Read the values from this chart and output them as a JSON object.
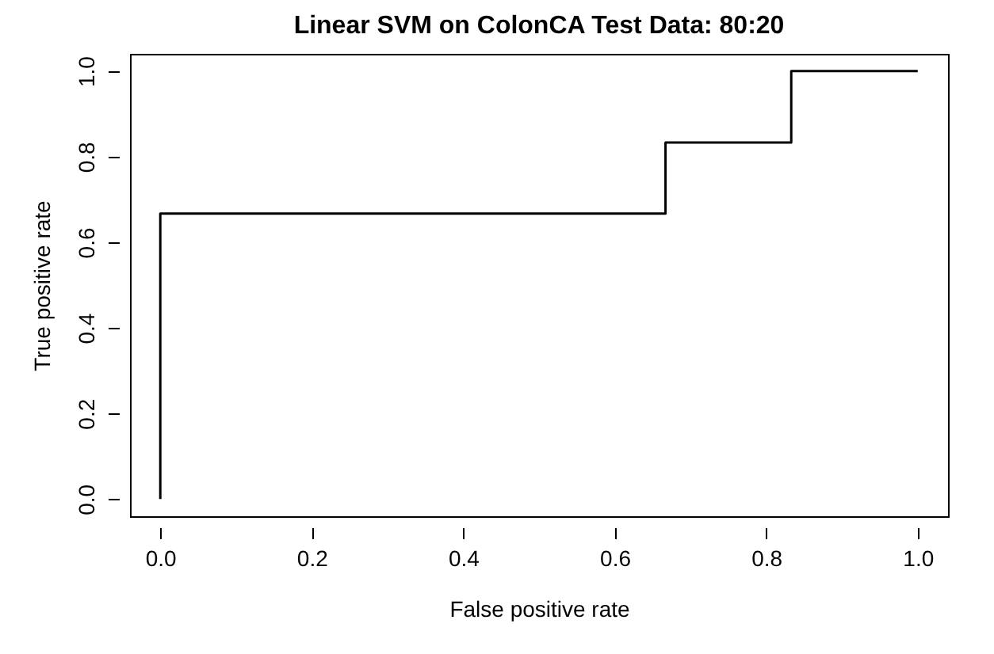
{
  "chart_data": {
    "type": "line",
    "title": "Linear SVM on ColonCA Test Data: 80:20",
    "xlabel": "False positive rate",
    "ylabel": "True positive rate",
    "x": [
      0,
      0,
      0.667,
      0.667,
      0.833,
      0.833,
      1
    ],
    "series": [
      {
        "color": "#000000",
        "values": [
          0,
          0.667,
          0.667,
          0.833,
          0.833,
          1,
          1
        ]
      }
    ],
    "xlim": [
      -0.04,
      1.04
    ],
    "ylim": [
      -0.04,
      1.04
    ],
    "xticks": [
      {
        "value": 0,
        "label": "0.0"
      },
      {
        "value": 0.2,
        "label": "0.2"
      },
      {
        "value": 0.4,
        "label": "0.4"
      },
      {
        "value": 0.6,
        "label": "0.6"
      },
      {
        "value": 0.8,
        "label": "0.8"
      },
      {
        "value": 1,
        "label": "1.0"
      }
    ],
    "yticks": [
      {
        "value": 0,
        "label": "0.0"
      },
      {
        "value": 0.2,
        "label": "0.2"
      },
      {
        "value": 0.4,
        "label": "0.4"
      },
      {
        "value": 0.6,
        "label": "0.6"
      },
      {
        "value": 0.8,
        "label": "0.8"
      },
      {
        "value": 1,
        "label": "1.0"
      }
    ],
    "grid": false,
    "marker": "none",
    "line_style": "solid"
  }
}
